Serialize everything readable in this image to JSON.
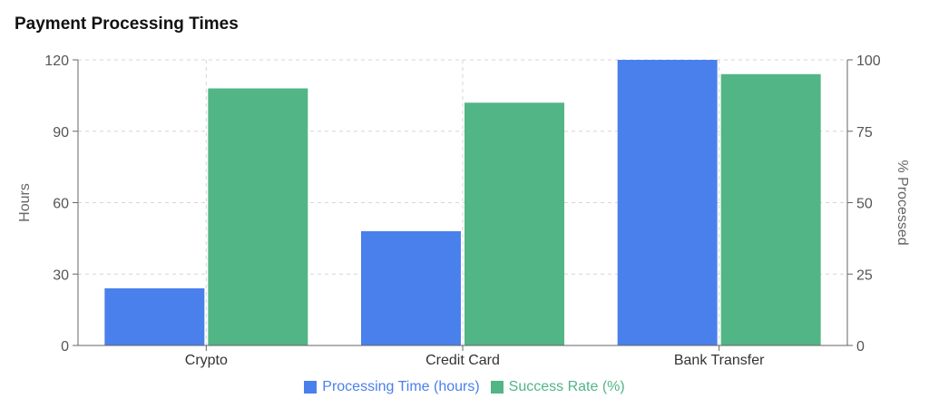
{
  "chart_data": {
    "type": "bar",
    "title": "Payment Processing Times",
    "categories": [
      "Crypto",
      "Credit Card",
      "Bank Transfer"
    ],
    "series": [
      {
        "name": "Processing Time (hours)",
        "axis": "left",
        "color": "#4a80ec",
        "values": [
          24,
          48,
          120
        ]
      },
      {
        "name": "Success Rate (%)",
        "axis": "right",
        "color": "#52b586",
        "values": [
          90,
          85,
          95
        ]
      }
    ],
    "ylabel": "Hours",
    "ylabel_right": "% Processed",
    "ylim": [
      0,
      120
    ],
    "ylim_right": [
      0,
      100
    ],
    "yticks": [
      0,
      30,
      60,
      90,
      120
    ],
    "yticks_right": [
      0,
      25,
      50,
      75,
      100
    ],
    "grid": true,
    "legend": "bottom-center"
  }
}
